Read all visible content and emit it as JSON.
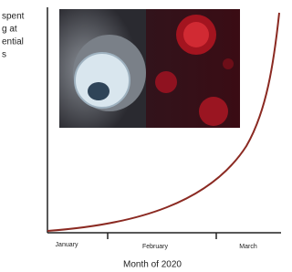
{
  "chart_data": {
    "type": "line",
    "ylabel_lines": [
      "spent",
      "g at",
      "ential",
      "s"
    ],
    "categories": [
      "January",
      "February",
      "March"
    ],
    "xlabel": "Month of 2020"
  }
}
